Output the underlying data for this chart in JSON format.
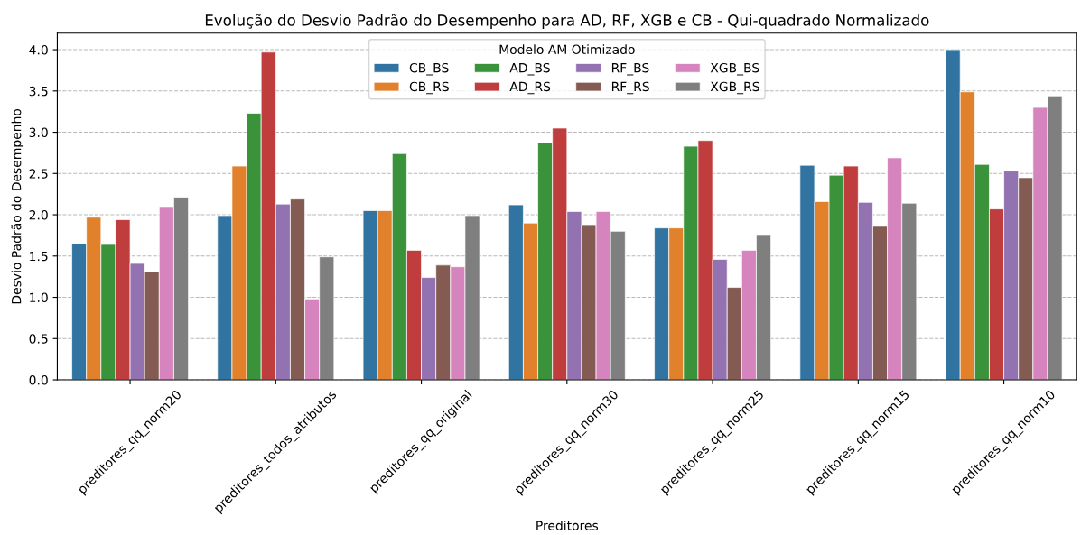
{
  "chart_data": {
    "type": "bar",
    "title": "Evolução do Desvio Padrão do Desempenho para AD, RF, XGB e CB - Qui-quadrado Normalizado",
    "xlabel": "Preditores",
    "ylabel": "Desvio Padrão do Desempenho",
    "legend_title": "Modelo AM Otimizado",
    "categories": [
      "preditores_qq_norm20",
      "preditores_todos_atributos",
      "preditores_qq_original",
      "preditores_qq_norm30",
      "preditores_qq_norm25",
      "preditores_qq_norm15",
      "preditores_qq_norm10"
    ],
    "series": [
      {
        "name": "CB_BS",
        "color": "#3274a1",
        "values": [
          1.65,
          1.99,
          2.05,
          2.12,
          1.84,
          2.6,
          4.0
        ]
      },
      {
        "name": "CB_RS",
        "color": "#e1812c",
        "values": [
          1.97,
          2.59,
          2.05,
          1.9,
          1.84,
          2.16,
          3.49
        ]
      },
      {
        "name": "AD_BS",
        "color": "#3a923a",
        "values": [
          1.64,
          3.23,
          2.74,
          2.87,
          2.83,
          2.48,
          2.61
        ]
      },
      {
        "name": "AD_RS",
        "color": "#c03d3e",
        "values": [
          1.94,
          3.97,
          1.57,
          3.05,
          2.9,
          2.59,
          2.07
        ]
      },
      {
        "name": "RF_BS",
        "color": "#9372b2",
        "values": [
          1.41,
          2.13,
          1.24,
          2.04,
          1.46,
          2.15,
          2.53
        ]
      },
      {
        "name": "RF_RS",
        "color": "#845b53",
        "values": [
          1.31,
          2.19,
          1.39,
          1.88,
          1.12,
          1.86,
          2.45
        ]
      },
      {
        "name": "XGB_BS",
        "color": "#d684bd",
        "values": [
          2.1,
          0.98,
          1.37,
          2.04,
          1.57,
          2.69,
          3.3
        ]
      },
      {
        "name": "XGB_RS",
        "color": "#7f7f7f",
        "values": [
          2.21,
          1.49,
          1.99,
          1.8,
          1.75,
          2.14,
          3.44
        ]
      }
    ],
    "ylim": [
      0,
      4.2
    ],
    "yticks": [
      {
        "value": 0,
        "label": "0.0"
      },
      {
        "value": 0.5,
        "label": "0.5"
      },
      {
        "value": 1,
        "label": "1.0"
      },
      {
        "value": 1.5,
        "label": "1.5"
      },
      {
        "value": 2,
        "label": "2.0"
      },
      {
        "value": 2.5,
        "label": "2.5"
      },
      {
        "value": 3,
        "label": "3.0"
      },
      {
        "value": 3.5,
        "label": "3.5"
      },
      {
        "value": 4,
        "label": "4.0"
      }
    ],
    "grid": "y",
    "legend": "top"
  }
}
